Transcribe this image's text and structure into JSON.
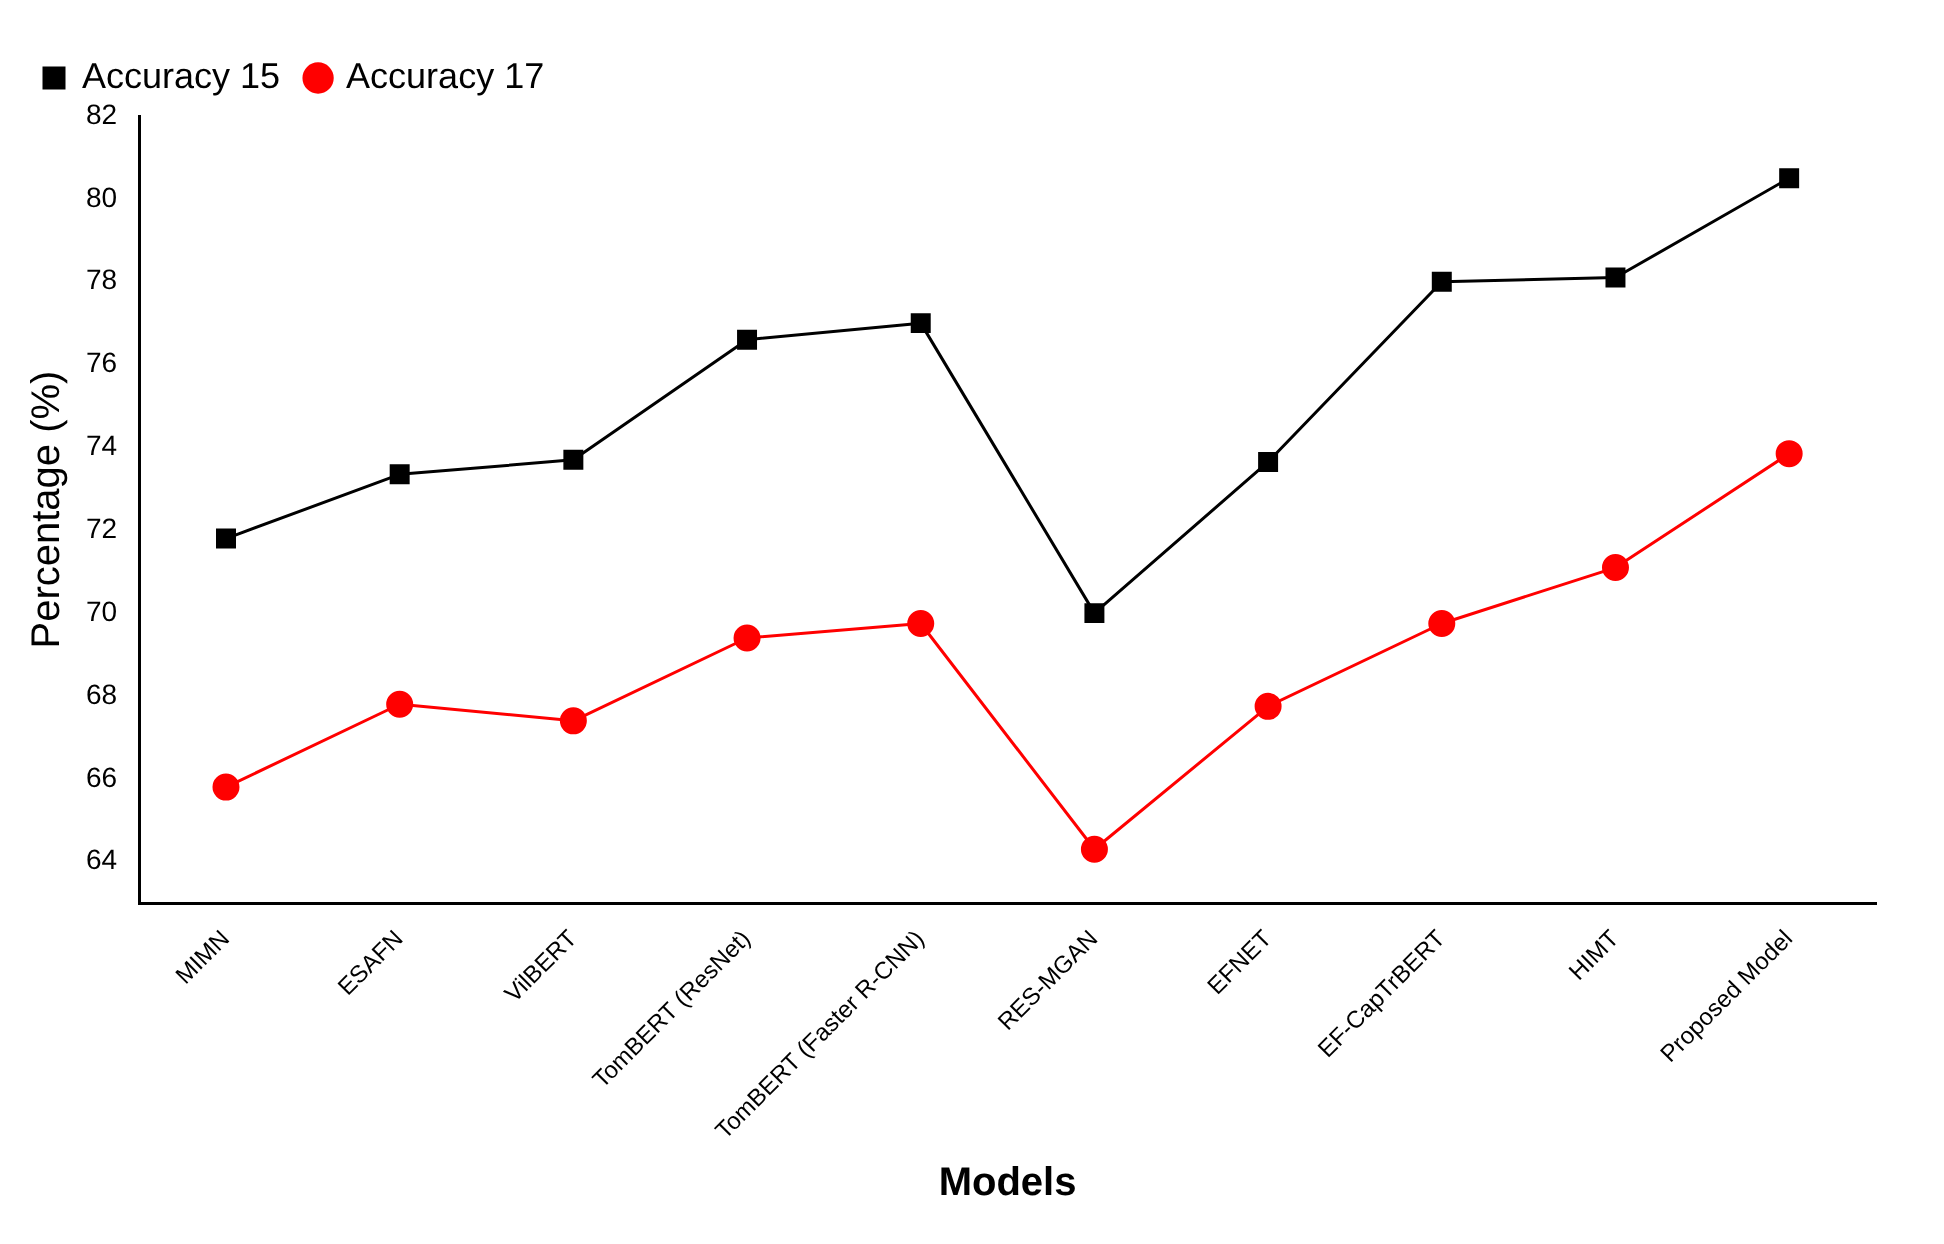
{
  "chart_data": {
    "type": "line",
    "xlabel": "Models",
    "ylabel": "Percentage (%)",
    "categories": [
      "MIMN",
      "ESAFN",
      "VilBERT",
      "TomBERT (ResNet)",
      "TomBERT (Faster R-CNN)",
      "RES-MGAN",
      "EFNET",
      "EF-CapTrBERT",
      "HIMT",
      "Proposed Model"
    ],
    "series": [
      {
        "name": "Accuracy 15",
        "color": "#000000",
        "marker": "square",
        "values": [
          71.8,
          73.35,
          73.7,
          76.6,
          77.0,
          70.0,
          73.65,
          78.0,
          78.1,
          80.5
        ]
      },
      {
        "name": "Accuracy 17",
        "color": "#ff0000",
        "marker": "circle",
        "values": [
          65.8,
          67.8,
          67.4,
          69.4,
          69.75,
          64.3,
          67.75,
          69.75,
          71.1,
          73.85
        ]
      }
    ],
    "ylim": [
      63,
      82
    ],
    "yticks": [
      64,
      66,
      68,
      70,
      72,
      74,
      76,
      78,
      80,
      82
    ],
    "grid": false,
    "legend": "top left",
    "line_style": "solid"
  }
}
